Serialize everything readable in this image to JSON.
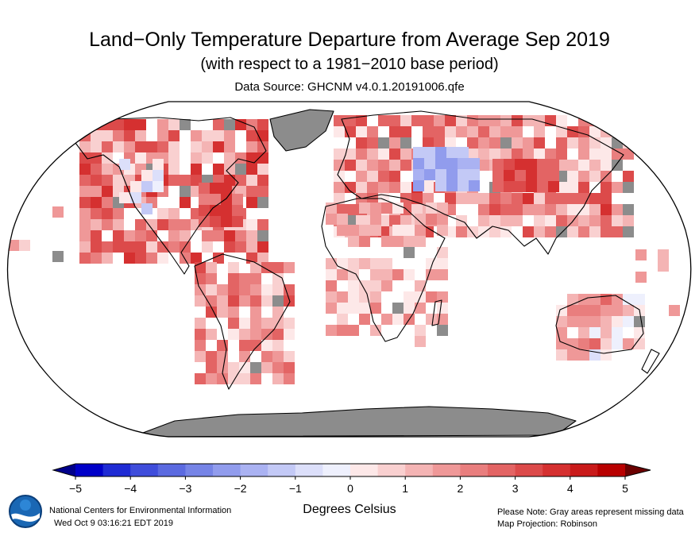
{
  "header": {
    "title": "Land−Only Temperature Departure from Average Sep 2019",
    "subtitle": "(with respect to a 1981−2010 base period)",
    "source": "Data Source: GHCNM v4.0.1.20191006.qfe"
  },
  "map": {
    "projection_note": "Map Projection: Robinson",
    "missing_color": "#8c8c8c",
    "ocean_color": "#ffffff",
    "coastline_color": "#000000"
  },
  "colorbar": {
    "ticks": [
      "−5",
      "−4",
      "−3",
      "−2",
      "−1",
      "0",
      "1",
      "2",
      "3",
      "4",
      "5"
    ],
    "units": "Degrees Celsius",
    "colors": [
      "#0000c8",
      "#1f2bd4",
      "#3f4ddb",
      "#5b6ae0",
      "#7684e6",
      "#919ced",
      "#aab2f2",
      "#c3c9f6",
      "#dcdffa",
      "#eef0fd",
      "#fde8e8",
      "#f9d0d0",
      "#f4b4b4",
      "#ef9898",
      "#e97e7e",
      "#e36464",
      "#dc4a4a",
      "#d53030",
      "#c91a1a",
      "#b80000"
    ]
  },
  "footer": {
    "org": "National Centers for Environmental Information",
    "timestamp": "Wed Oct  9 03:16:21 EDT 2019",
    "note": "Please Note: Gray areas represent missing data",
    "projection": "Map Projection: Robinson",
    "logo_text": "NOAA"
  }
}
